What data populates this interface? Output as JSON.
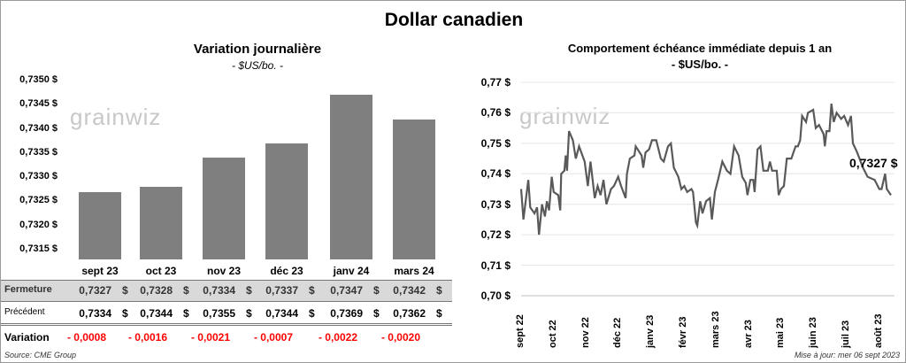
{
  "title": "Dollar canadien",
  "source": "Source: CME Group",
  "updated": "Mise à jour: mer 06 sept 2023",
  "watermark": "grainwiz",
  "colors": {
    "bar": "#7f7f7f",
    "line": "#595959",
    "negative": "#ff0000",
    "row_bg": "#d9d9d9",
    "grid": "#e6e6e6"
  },
  "table": {
    "row_labels": [
      "Fermeture",
      "Précédent",
      "Variation"
    ],
    "currency": "$",
    "fermeture": [
      "0,7327",
      "0,7328",
      "0,7334",
      "0,7337",
      "0,7347",
      "0,7342"
    ],
    "precedent": [
      "0,7334",
      "0,7344",
      "0,7355",
      "0,7344",
      "0,7369",
      "0,7362"
    ],
    "variation": [
      "- 0,0008",
      "- 0,0016",
      "- 0,0021",
      "- 0,0007",
      "- 0,0022",
      "- 0,0020"
    ]
  },
  "chart_data": [
    {
      "type": "bar",
      "title": "Variation  journalière",
      "subtitle": "- $US/bo. -",
      "categories": [
        "sept 23",
        "oct 23",
        "nov 23",
        "déc 23",
        "janv 24",
        "mars 24"
      ],
      "values": [
        0.7327,
        0.7328,
        0.7334,
        0.7337,
        0.7347,
        0.7342
      ],
      "ylim": [
        0.7315,
        0.735
      ],
      "yticks": [
        0.7315,
        0.732,
        0.7325,
        0.733,
        0.7335,
        0.734,
        0.7345,
        0.735
      ],
      "ytick_labels": [
        "0,7315 $",
        "0,7320 $",
        "0,7325 $",
        "0,7330 $",
        "0,7335 $",
        "0,7340 $",
        "0,7345 $",
        "0,7350 $"
      ],
      "grid": false
    },
    {
      "type": "line",
      "title": "Comportement échéance immédiate depuis 1 an",
      "subtitle": "- $US/bo. -",
      "xlabel_unit": "months since sept 22",
      "xtick_labels": [
        "sept 22",
        "oct 22",
        "nov 22",
        "déc 22",
        "janv 23",
        "févr 23",
        "mars 23",
        "avr 23",
        "mai 23",
        "juin 23",
        "juil 23",
        "août 23"
      ],
      "ylim": [
        0.7,
        0.77
      ],
      "yticks": [
        0.7,
        0.71,
        0.72,
        0.73,
        0.74,
        0.75,
        0.76,
        0.77
      ],
      "ytick_labels": [
        "0,70 $",
        "0,71 $",
        "0,72 $",
        "0,73 $",
        "0,74 $",
        "0,75 $",
        "0,76 $",
        "0,77 $"
      ],
      "grid": true,
      "last_value_label": "0,7327 $",
      "x": [
        0,
        0.07,
        0.22,
        0.28,
        0.41,
        0.49,
        0.55,
        0.64,
        0.73,
        0.79,
        0.86,
        0.94,
        1.0,
        1.14,
        1.2,
        1.23,
        1.33,
        1.37,
        1.41,
        1.47,
        1.59,
        1.68,
        1.78,
        1.95,
        2.05,
        2.13,
        2.26,
        2.35,
        2.44,
        2.53,
        2.62,
        2.76,
        2.85,
        2.98,
        3.07,
        3.21,
        3.25,
        3.34,
        3.48,
        3.52,
        3.7,
        3.75,
        3.82,
        3.93,
        4.02,
        4.15,
        4.29,
        4.38,
        4.51,
        4.6,
        4.69,
        4.83,
        4.92,
        5.01,
        5.1,
        5.23,
        5.28,
        5.37,
        5.41,
        5.5,
        5.57,
        5.68,
        5.8,
        5.86,
        5.95,
        6.07,
        6.18,
        6.32,
        6.43,
        6.54,
        6.68,
        6.79,
        6.9,
        6.95,
        7.04,
        7.13,
        7.17,
        7.26,
        7.35,
        7.44,
        7.58,
        7.64,
        7.71,
        7.85,
        7.91,
        7.98,
        8.07,
        8.16,
        8.3,
        8.43,
        8.5,
        8.57,
        8.63,
        8.75,
        8.81,
        8.97,
        9.05,
        9.15,
        9.29,
        9.33,
        9.38,
        9.47,
        9.53,
        9.6,
        9.69,
        9.83,
        9.92,
        10.04,
        10.13,
        10.19,
        10.32,
        10.5,
        10.64,
        10.86,
        11.0,
        11.07,
        11.18,
        11.23,
        11.36
      ],
      "y": [
        0.735,
        0.725,
        0.738,
        0.729,
        0.727,
        0.729,
        0.72,
        0.73,
        0.726,
        0.731,
        0.728,
        0.739,
        0.734,
        0.733,
        0.728,
        0.74,
        0.741,
        0.746,
        0.741,
        0.754,
        0.751,
        0.745,
        0.749,
        0.744,
        0.736,
        0.744,
        0.732,
        0.736,
        0.733,
        0.738,
        0.73,
        0.735,
        0.736,
        0.739,
        0.736,
        0.732,
        0.74,
        0.745,
        0.746,
        0.749,
        0.746,
        0.742,
        0.747,
        0.748,
        0.751,
        0.751,
        0.745,
        0.744,
        0.749,
        0.75,
        0.742,
        0.739,
        0.735,
        0.736,
        0.734,
        0.735,
        0.734,
        0.724,
        0.723,
        0.731,
        0.727,
        0.731,
        0.732,
        0.725,
        0.734,
        0.739,
        0.744,
        0.741,
        0.74,
        0.749,
        0.746,
        0.739,
        0.737,
        0.733,
        0.738,
        0.738,
        0.734,
        0.748,
        0.749,
        0.741,
        0.741,
        0.744,
        0.741,
        0.741,
        0.733,
        0.735,
        0.736,
        0.745,
        0.745,
        0.749,
        0.749,
        0.751,
        0.759,
        0.757,
        0.76,
        0.761,
        0.755,
        0.756,
        0.753,
        0.749,
        0.754,
        0.754,
        0.763,
        0.757,
        0.76,
        0.758,
        0.759,
        0.756,
        0.759,
        0.75,
        0.747,
        0.742,
        0.739,
        0.738,
        0.735,
        0.735,
        0.74,
        0.735,
        0.733
      ]
    }
  ]
}
